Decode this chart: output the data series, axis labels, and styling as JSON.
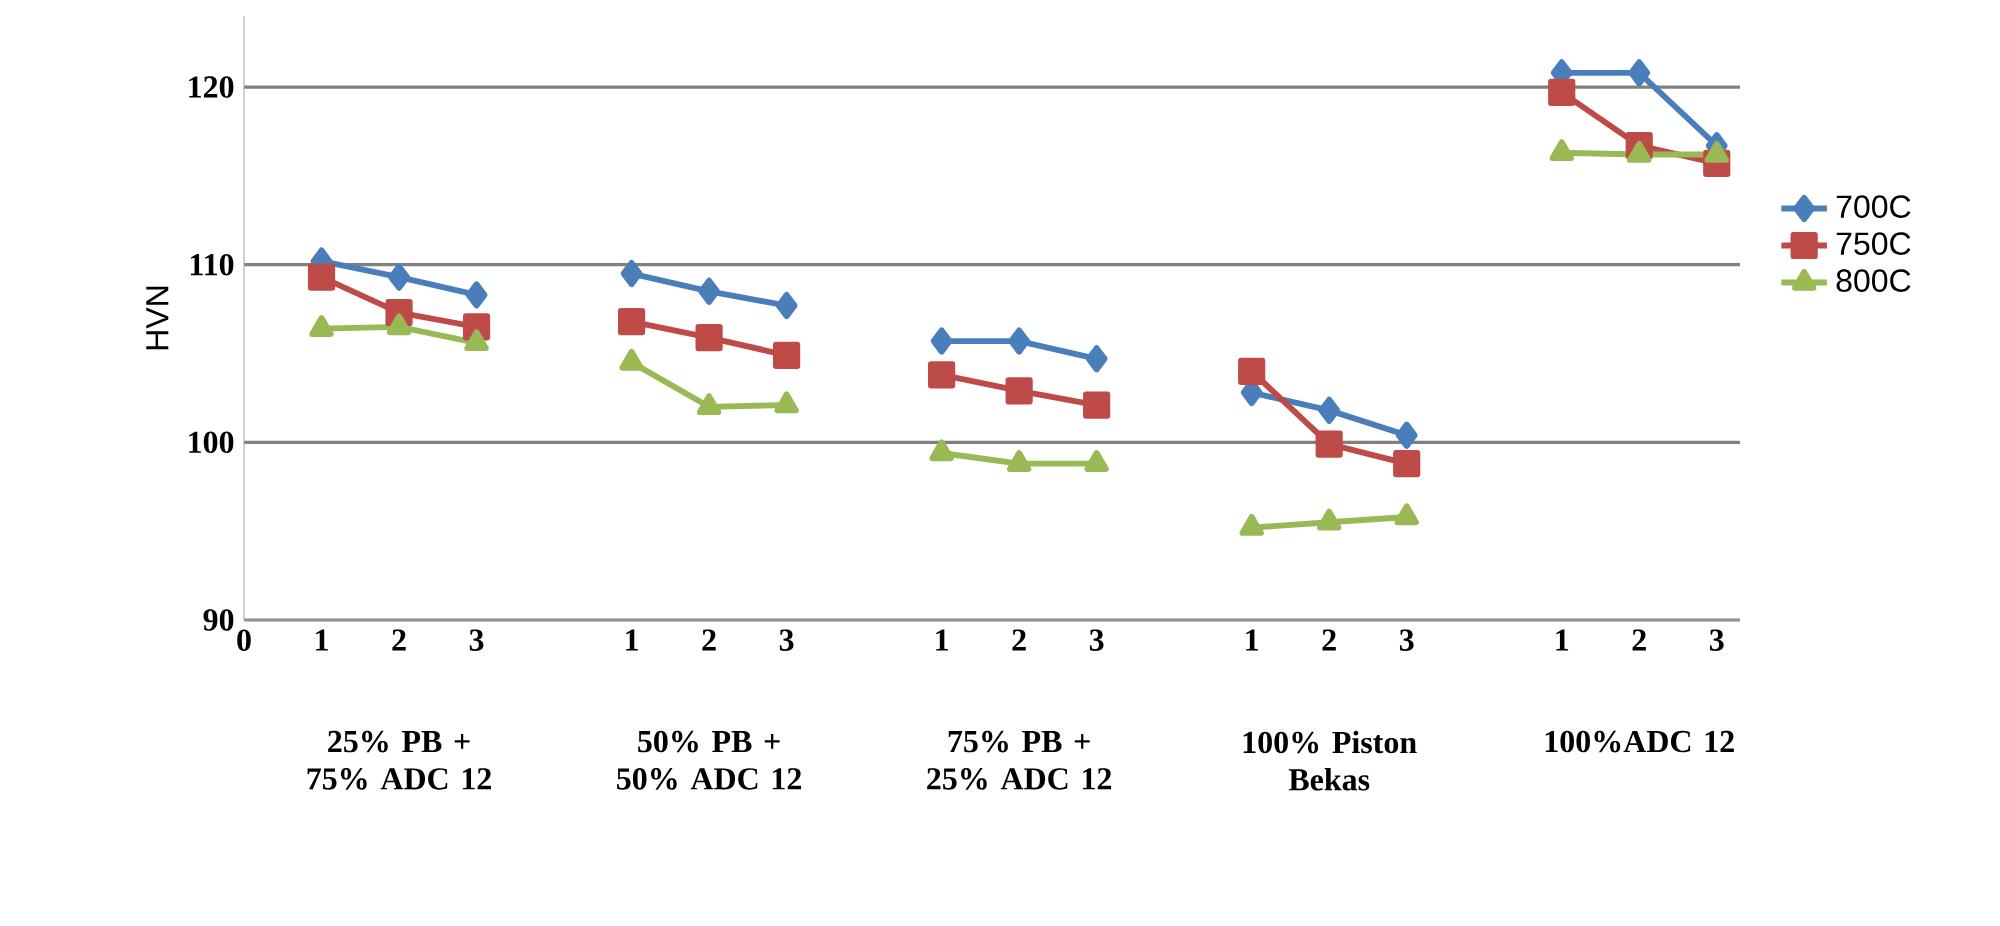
{
  "chart_data": {
    "type": "line",
    "ylabel": "HVN",
    "categories": [
      "0",
      "1",
      "2",
      "3",
      null,
      "1",
      "2",
      "3",
      null,
      "1",
      "2",
      "3",
      null,
      "1",
      "2",
      "3",
      null,
      "1",
      "2",
      "3"
    ],
    "series": [
      {
        "name": "700C",
        "color": "#4a7ebb",
        "marker": "diamond",
        "values": [
          null,
          110.2,
          109.3,
          108.3,
          null,
          109.5,
          108.5,
          107.7,
          null,
          105.7,
          105.7,
          104.7,
          null,
          102.8,
          101.8,
          100.4,
          null,
          120.8,
          120.8,
          116.7
        ]
      },
      {
        "name": "750C",
        "color": "#be4b48",
        "marker": "square",
        "values": [
          null,
          109.3,
          107.3,
          106.5,
          null,
          106.8,
          105.9,
          104.9,
          null,
          103.8,
          102.9,
          102.1,
          null,
          104.0,
          99.9,
          98.8,
          null,
          119.7,
          116.7,
          115.7
        ]
      },
      {
        "name": "800C",
        "color": "#98b954",
        "marker": "triangle",
        "values": [
          null,
          106.4,
          106.5,
          105.6,
          null,
          104.5,
          102.0,
          102.1,
          null,
          99.4,
          98.8,
          98.8,
          null,
          95.2,
          95.5,
          95.8,
          null,
          116.3,
          116.2,
          116.2
        ]
      }
    ],
    "ylim": [
      90,
      124
    ],
    "yticks": [
      90,
      100,
      110,
      120
    ],
    "grid": "y",
    "legend": "right",
    "line_style": "solid",
    "annotations": [
      "25% PB + 75% ADC 12",
      "50% PB + 50% ADC 12",
      "75% PB + 25% ADC 12",
      "100% Piston Bekas",
      "100%ADC 12"
    ]
  }
}
